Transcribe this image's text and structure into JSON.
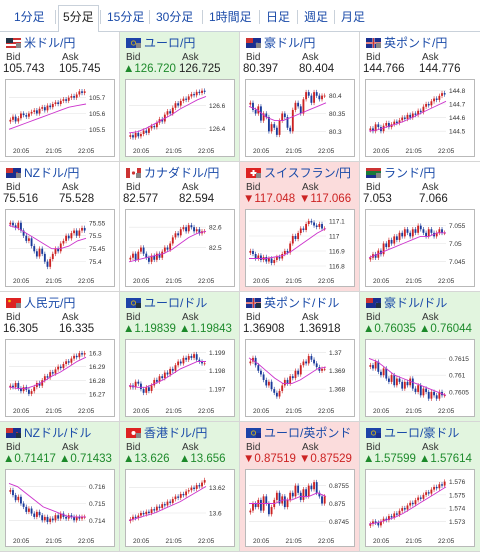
{
  "tabs": [
    {
      "label": "1分足"
    },
    {
      "label": "5分足",
      "active": true
    },
    {
      "label": "15分足"
    },
    {
      "label": "30分足"
    },
    {
      "label": "1時間足"
    },
    {
      "label": "日足"
    },
    {
      "label": "週足"
    },
    {
      "label": "月足"
    }
  ],
  "colors": {
    "up_candle": "#cc2222",
    "down_candle": "#1a3a9a",
    "ma_line": "#cc33cc",
    "up_bg": "#e2f5df",
    "down_bg": "#fbdcdc",
    "link": "#1a4aa8"
  },
  "pairs": [
    {
      "name": "米ドル/円",
      "flag": "us-flag-icon",
      "trend": "flat",
      "bid": "105.743",
      "ask": "105.745",
      "chart_data": {
        "type": "candlestick",
        "y_ticks": [
          "105.7",
          "105.6",
          "105.5"
        ],
        "ylim": [
          105.42,
          105.78
        ],
        "x_ticks": [
          "20:05",
          "21:05",
          "22:05"
        ],
        "closes": [
          105.56,
          105.58,
          105.55,
          105.57,
          105.6,
          105.59,
          105.58,
          105.6,
          105.61,
          105.62,
          105.6,
          105.63,
          105.64,
          105.62,
          105.65,
          105.64,
          105.66,
          105.67,
          105.66,
          105.68,
          105.69,
          105.68,
          105.7,
          105.71,
          105.7,
          105.72,
          105.74,
          105.73,
          105.74
        ],
        "ma": [
          105.5,
          105.52,
          105.54,
          105.56,
          105.58,
          105.6,
          105.62,
          105.64,
          105.65,
          105.66
        ]
      }
    },
    {
      "name": "ユーロ/円",
      "flag": "eu-flag-icon",
      "trend": "up",
      "bid": "▲126.720",
      "ask": "126.725",
      "bid_dir": "up",
      "chart_data": {
        "type": "candlestick",
        "y_ticks": [
          "126.6",
          "126.4"
        ],
        "ylim": [
          126.28,
          126.78
        ],
        "x_ticks": [
          "20:05",
          "21:05",
          "22:05"
        ],
        "closes": [
          126.34,
          126.32,
          126.36,
          126.33,
          126.35,
          126.38,
          126.36,
          126.4,
          126.42,
          126.41,
          126.45,
          126.48,
          126.46,
          126.52,
          126.55,
          126.53,
          126.58,
          126.62,
          126.6,
          126.64,
          126.66,
          126.65,
          126.68,
          126.7,
          126.69,
          126.72,
          126.71,
          126.73,
          126.72
        ],
        "ma": [
          126.36,
          126.37,
          126.4,
          126.44,
          126.48,
          126.52,
          126.57,
          126.61,
          126.65,
          126.68
        ]
      }
    },
    {
      "name": "豪ドル/円",
      "flag": "au-flag-icon",
      "trend": "flat",
      "bid": "80.397",
      "ask": "80.404",
      "chart_data": {
        "type": "candlestick",
        "y_ticks": [
          "80.4",
          "80.35",
          "80.3"
        ],
        "ylim": [
          80.27,
          80.43
        ],
        "x_ticks": [
          "20:05",
          "21:05",
          "22:05"
        ],
        "closes": [
          80.38,
          80.36,
          80.35,
          80.37,
          80.33,
          80.35,
          80.34,
          80.3,
          80.32,
          80.31,
          80.29,
          80.33,
          80.35,
          80.34,
          80.31,
          80.3,
          80.36,
          80.38,
          80.37,
          80.35,
          80.39,
          80.41,
          80.4,
          80.38,
          80.41,
          80.4,
          80.39,
          80.4,
          80.4
        ],
        "ma": [
          80.37,
          80.36,
          80.34,
          80.33,
          80.33,
          80.34,
          80.35,
          80.36,
          80.37,
          80.38
        ]
      }
    },
    {
      "name": "英ポンド/円",
      "flag": "uk-flag-icon",
      "trend": "flat",
      "bid": "144.766",
      "ask": "144.776",
      "chart_data": {
        "type": "candlestick",
        "y_ticks": [
          "144.8",
          "144.7",
          "144.6",
          "144.5"
        ],
        "ylim": [
          144.42,
          144.84
        ],
        "x_ticks": [
          "20:05",
          "21:05",
          "22:05"
        ],
        "closes": [
          144.52,
          144.5,
          144.55,
          144.53,
          144.5,
          144.54,
          144.56,
          144.53,
          144.55,
          144.57,
          144.56,
          144.58,
          144.6,
          144.59,
          144.62,
          144.6,
          144.63,
          144.62,
          144.65,
          144.64,
          144.68,
          144.7,
          144.69,
          144.72,
          144.74,
          144.73,
          144.76,
          144.78,
          144.77
        ],
        "ma": [
          144.5,
          144.51,
          144.53,
          144.55,
          144.57,
          144.6,
          144.63,
          144.66,
          144.69,
          144.72
        ]
      }
    },
    {
      "name": "NZドル/円",
      "flag": "nz-flag-icon",
      "trend": "flat",
      "bid": "75.516",
      "ask": "75.528",
      "chart_data": {
        "type": "candlestick",
        "y_ticks": [
          "75.55",
          "75.5",
          "75.45",
          "75.4"
        ],
        "ylim": [
          75.36,
          75.58
        ],
        "x_ticks": [
          "20:05",
          "21:05",
          "22:05"
        ],
        "closes": [
          75.55,
          75.54,
          75.53,
          75.55,
          75.52,
          75.5,
          75.48,
          75.49,
          75.46,
          75.44,
          75.42,
          75.45,
          75.43,
          75.4,
          75.38,
          75.41,
          75.43,
          75.45,
          75.44,
          75.47,
          75.48,
          75.5,
          75.49,
          75.51,
          75.52,
          75.5,
          75.52,
          75.53,
          75.52
        ],
        "ma": [
          75.54,
          75.53,
          75.51,
          75.49,
          75.47,
          75.45,
          75.45,
          75.46,
          75.48,
          75.49
        ]
      }
    },
    {
      "name": "カナダドル/円",
      "flag": "ca-flag-icon",
      "trend": "flat",
      "bid": "82.577",
      "ask": "82.594",
      "chart_data": {
        "type": "candlestick",
        "y_ticks": [
          "82.6",
          "82.5"
        ],
        "ylim": [
          82.38,
          82.66
        ],
        "x_ticks": [
          "20:05",
          "21:05",
          "22:05"
        ],
        "closes": [
          82.45,
          82.47,
          82.44,
          82.48,
          82.5,
          82.47,
          82.45,
          82.43,
          82.46,
          82.44,
          82.47,
          82.45,
          82.48,
          82.5,
          82.49,
          82.52,
          82.55,
          82.57,
          82.56,
          82.59,
          82.6,
          82.58,
          82.61,
          82.6,
          82.58,
          82.59,
          82.57,
          82.58,
          82.58
        ],
        "ma": [
          82.43,
          82.44,
          82.45,
          82.46,
          82.47,
          82.49,
          82.52,
          82.55,
          82.57,
          82.58
        ]
      }
    },
    {
      "name": "スイスフラン/円",
      "flag": "ch-flag-icon",
      "trend": "down",
      "bid": "▼117.048",
      "ask": "▼117.066",
      "bid_dir": "down",
      "ask_dir": "down",
      "chart_data": {
        "type": "candlestick",
        "y_ticks": [
          "117.1",
          "117",
          "116.9",
          "116.8"
        ],
        "ylim": [
          116.76,
          117.14
        ],
        "x_ticks": [
          "20:05",
          "21:05",
          "22:05"
        ],
        "closes": [
          116.9,
          116.88,
          116.85,
          116.87,
          116.84,
          116.86,
          116.83,
          116.85,
          116.82,
          116.84,
          116.86,
          116.85,
          116.88,
          116.9,
          116.89,
          116.95,
          117.0,
          116.98,
          117.02,
          117.05,
          117.04,
          117.08,
          117.1,
          117.09,
          117.07,
          117.06,
          117.08,
          117.05,
          117.05
        ],
        "ma": [
          116.85,
          116.85,
          116.85,
          116.86,
          116.87,
          116.9,
          116.94,
          116.98,
          117.02,
          117.05
        ]
      }
    },
    {
      "name": "ランド/円",
      "flag": "za-flag-icon",
      "trend": "flat",
      "bid": "7.053",
      "ask": "7.066",
      "chart_data": {
        "type": "candlestick",
        "y_ticks": [
          "7.055",
          "7.05",
          "7.045"
        ],
        "ylim": [
          7.042,
          7.058
        ],
        "x_ticks": [
          "20:05",
          "21:05",
          "22:05"
        ],
        "closes": [
          7.046,
          7.047,
          7.046,
          7.048,
          7.047,
          7.05,
          7.049,
          7.051,
          7.05,
          7.052,
          7.051,
          7.053,
          7.052,
          7.054,
          7.053,
          7.052,
          7.054,
          7.053,
          7.055,
          7.054,
          7.053,
          7.052,
          7.054,
          7.053,
          7.052,
          7.053,
          7.054,
          7.053,
          7.053
        ],
        "ma": [
          7.046,
          7.047,
          7.048,
          7.049,
          7.05,
          7.051,
          7.052,
          7.052,
          7.053,
          7.053
        ]
      }
    },
    {
      "name": "人民元/円",
      "flag": "cn-flag-icon",
      "trend": "flat",
      "bid": "16.305",
      "ask": "16.335",
      "chart_data": {
        "type": "candlestick",
        "y_ticks": [
          "16.3",
          "16.29",
          "16.28",
          "16.27"
        ],
        "ylim": [
          16.264,
          16.306
        ],
        "x_ticks": [
          "20:05",
          "21:05",
          "22:05"
        ],
        "closes": [
          16.276,
          16.275,
          16.278,
          16.274,
          16.272,
          16.275,
          16.273,
          16.27,
          16.272,
          16.275,
          16.278,
          16.276,
          16.28,
          16.283,
          16.282,
          16.286,
          16.285,
          16.288,
          16.29,
          16.289,
          16.292,
          16.294,
          16.293,
          16.296,
          16.298,
          16.297,
          16.3,
          16.299,
          16.3
        ],
        "ma": [
          16.275,
          16.274,
          16.274,
          16.276,
          16.279,
          16.283,
          16.286,
          16.29,
          16.294,
          16.297
        ]
      }
    },
    {
      "name": "ユーロ/ドル",
      "flag": "eu-us-flag-icon",
      "trend": "up",
      "bid": "▲1.19839",
      "ask": "▲1.19843",
      "bid_dir": "up",
      "ask_dir": "up",
      "chart_data": {
        "type": "candlestick",
        "y_ticks": [
          "1.199",
          "1.198",
          "1.197"
        ],
        "ylim": [
          1.1963,
          1.1994
        ],
        "x_ticks": [
          "20:05",
          "21:05",
          "22:05"
        ],
        "closes": [
          1.1972,
          1.1971,
          1.1974,
          1.1973,
          1.197,
          1.1968,
          1.1971,
          1.1969,
          1.1972,
          1.1975,
          1.1974,
          1.1977,
          1.1976,
          1.1979,
          1.1978,
          1.1981,
          1.198,
          1.1983,
          1.1985,
          1.1984,
          1.1987,
          1.1986,
          1.1988,
          1.1987,
          1.1989,
          1.1986,
          1.1985,
          1.1984,
          1.1984
        ],
        "ma": [
          1.1972,
          1.1971,
          1.1971,
          1.1973,
          1.1975,
          1.1978,
          1.1981,
          1.1983,
          1.1985,
          1.1985
        ]
      }
    },
    {
      "name": "英ポンド/ドル",
      "flag": "uk-us-flag-icon",
      "trend": "flat",
      "bid": "1.36908",
      "ask": "1.36918",
      "chart_data": {
        "type": "candlestick",
        "y_ticks": [
          "1.37",
          "1.369",
          "1.368"
        ],
        "ylim": [
          1.3673,
          1.3704
        ],
        "x_ticks": [
          "20:05",
          "21:05",
          "22:05"
        ],
        "closes": [
          1.3695,
          1.3697,
          1.3693,
          1.369,
          1.3688,
          1.3685,
          1.3682,
          1.3684,
          1.368,
          1.3678,
          1.3676,
          1.3679,
          1.3682,
          1.3685,
          1.3683,
          1.3687,
          1.3686,
          1.369,
          1.3688,
          1.3693,
          1.3695,
          1.3694,
          1.3698,
          1.3696,
          1.3694,
          1.3692,
          1.369,
          1.3691,
          1.3691
        ],
        "ma": [
          1.3697,
          1.3694,
          1.369,
          1.3686,
          1.3683,
          1.3683,
          1.3685,
          1.3688,
          1.3691,
          1.3692
        ]
      }
    },
    {
      "name": "豪ドル/ドル",
      "flag": "au-us-flag-icon",
      "trend": "up",
      "bid": "▲0.76035",
      "ask": "▲0.76044",
      "bid_dir": "up",
      "ask_dir": "up",
      "chart_data": {
        "type": "candlestick",
        "y_ticks": [
          "0.7615",
          "0.761",
          "0.7605"
        ],
        "ylim": [
          0.7602,
          0.7619
        ],
        "x_ticks": [
          "20:05",
          "21:05",
          "22:05"
        ],
        "closes": [
          0.7613,
          0.7612,
          0.7614,
          0.7611,
          0.761,
          0.7612,
          0.7609,
          0.7608,
          0.761,
          0.7607,
          0.7609,
          0.7608,
          0.7606,
          0.7608,
          0.7607,
          0.7609,
          0.7606,
          0.7605,
          0.7607,
          0.7604,
          0.7606,
          0.7605,
          0.7603,
          0.7605,
          0.7604,
          0.7603,
          0.7605,
          0.7604,
          0.7604
        ],
        "ma": [
          0.7615,
          0.7614,
          0.7612,
          0.761,
          0.7609,
          0.7608,
          0.7607,
          0.7606,
          0.7605,
          0.7604
        ]
      }
    },
    {
      "name": "NZドル/ドル",
      "flag": "nz-us-flag-icon",
      "trend": "up",
      "bid": "▲0.71417",
      "ask": "▲0.71433",
      "bid_dir": "up",
      "ask_dir": "up",
      "chart_data": {
        "type": "candlestick",
        "y_ticks": [
          "0.716",
          "0.715",
          "0.714"
        ],
        "ylim": [
          0.7133,
          0.7167
        ],
        "x_ticks": [
          "20:05",
          "21:05",
          "22:05"
        ],
        "closes": [
          0.7158,
          0.7155,
          0.7152,
          0.7154,
          0.715,
          0.7148,
          0.7145,
          0.7147,
          0.7144,
          0.7142,
          0.7145,
          0.7143,
          0.714,
          0.7142,
          0.7139,
          0.7141,
          0.714,
          0.7143,
          0.7141,
          0.7144,
          0.7142,
          0.7141,
          0.7143,
          0.7142,
          0.714,
          0.7142,
          0.7141,
          0.7142,
          0.7142
        ],
        "ma": [
          0.7162,
          0.716,
          0.7156,
          0.7152,
          0.7148,
          0.7146,
          0.7144,
          0.7142,
          0.7142,
          0.7142
        ]
      }
    },
    {
      "name": "香港ドル/円",
      "flag": "hk-flag-icon",
      "trend": "up",
      "bid": "▲13.626",
      "ask": "▲13.656",
      "bid_dir": "up",
      "ask_dir": "up",
      "chart_data": {
        "type": "candlestick",
        "y_ticks": [
          "13.62",
          "13.6"
        ],
        "ylim": [
          13.585,
          13.63
        ],
        "x_ticks": [
          "20:05",
          "21:05",
          "22:05"
        ],
        "closes": [
          13.595,
          13.597,
          13.596,
          13.598,
          13.6,
          13.599,
          13.601,
          13.6,
          13.603,
          13.602,
          13.605,
          13.604,
          13.607,
          13.606,
          13.609,
          13.608,
          13.611,
          13.613,
          13.612,
          13.615,
          13.614,
          13.617,
          13.618,
          13.62,
          13.619,
          13.622,
          13.621,
          13.624,
          13.626
        ],
        "ma": [
          13.594,
          13.596,
          13.598,
          13.6,
          13.603,
          13.606,
          13.609,
          13.613,
          13.617,
          13.621
        ]
      }
    },
    {
      "name": "ユーロ/英ポンド",
      "flag": "eu-uk-flag-icon",
      "trend": "down",
      "bid": "▼0.87519",
      "ask": "▼0.87529",
      "bid_dir": "down",
      "ask_dir": "down",
      "chart_data": {
        "type": "candlestick",
        "y_ticks": [
          "0.8755",
          "0.875",
          "0.8745"
        ],
        "ylim": [
          0.8742,
          0.8758
        ],
        "x_ticks": [
          "20:05",
          "21:05",
          "22:05"
        ],
        "closes": [
          0.8748,
          0.875,
          0.8749,
          0.8751,
          0.8748,
          0.8752,
          0.875,
          0.8747,
          0.8749,
          0.8751,
          0.8753,
          0.875,
          0.8752,
          0.8749,
          0.8751,
          0.8753,
          0.8752,
          0.8755,
          0.8753,
          0.8751,
          0.8754,
          0.8752,
          0.8755,
          0.8754,
          0.8756,
          0.8753,
          0.8752,
          0.875,
          0.8752
        ],
        "ma": [
          0.875,
          0.875,
          0.875,
          0.875,
          0.8751,
          0.8751,
          0.8752,
          0.8752,
          0.8753,
          0.8752
        ]
      }
    },
    {
      "name": "ユーロ/豪ドル",
      "flag": "eu-au-flag-icon",
      "trend": "up",
      "bid": "▲1.57599",
      "ask": "▲1.57614",
      "bid_dir": "up",
      "ask_dir": "up",
      "chart_data": {
        "type": "candlestick",
        "y_ticks": [
          "1.576",
          "1.575",
          "1.574",
          "1.573"
        ],
        "ylim": [
          1.5722,
          1.5765
        ],
        "x_ticks": [
          "20:05",
          "21:05",
          "22:05"
        ],
        "closes": [
          1.5728,
          1.573,
          1.5729,
          1.5727,
          1.573,
          1.5732,
          1.5731,
          1.5734,
          1.5733,
          1.5736,
          1.5735,
          1.5738,
          1.574,
          1.5739,
          1.5742,
          1.5744,
          1.5743,
          1.5746,
          1.5748,
          1.5747,
          1.575,
          1.5752,
          1.5751,
          1.5754,
          1.5756,
          1.5755,
          1.5758,
          1.5757,
          1.576
        ],
        "ma": [
          1.5728,
          1.5729,
          1.5731,
          1.5733,
          1.5736,
          1.574,
          1.5744,
          1.5748,
          1.5752,
          1.5756
        ]
      }
    }
  ]
}
